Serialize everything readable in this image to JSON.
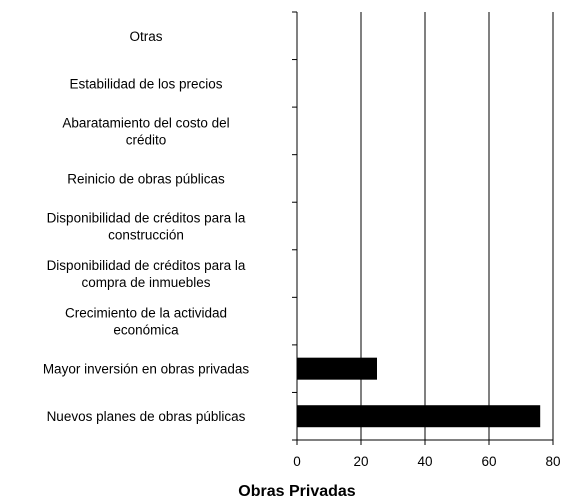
{
  "chart_data": {
    "type": "bar",
    "orientation": "horizontal",
    "categories": [
      [
        "Otras"
      ],
      [
        "Estabilidad de los precios"
      ],
      [
        "Abaratamiento del costo del",
        "crédito"
      ],
      [
        "Reinicio de obras públicas"
      ],
      [
        "Disponibilidad de créditos para la",
        "construcción"
      ],
      [
        "Disponibilidad de créditos para la",
        "compra de inmuebles"
      ],
      [
        "Crecimiento de la actividad",
        "económica"
      ],
      [
        "Mayor inversión en obras privadas"
      ],
      [
        "Nuevos planes de obras públicas"
      ]
    ],
    "values": [
      0,
      0,
      0,
      0,
      0,
      0,
      0,
      25,
      76
    ],
    "bar_color": "#000000",
    "xlim": [
      0,
      80
    ],
    "xticks": [
      "0",
      "20",
      "40",
      "60",
      "80"
    ],
    "xlabel": "Obras Privadas",
    "title": "",
    "grid": "vertical gridlines"
  }
}
